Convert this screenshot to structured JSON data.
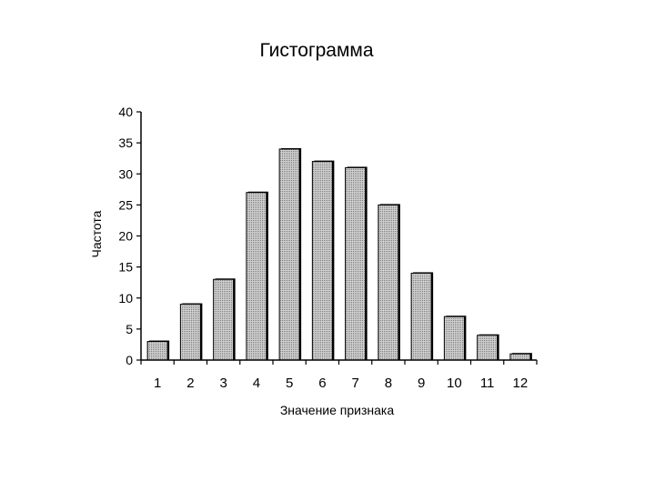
{
  "slide": {
    "title": "Гистограмма"
  },
  "chart_data": {
    "type": "bar",
    "title": "",
    "xlabel": "Значение признака",
    "ylabel": "Частота",
    "categories": [
      "1",
      "2",
      "3",
      "4",
      "5",
      "6",
      "7",
      "8",
      "9",
      "10",
      "11",
      "12"
    ],
    "values": [
      3,
      9,
      13,
      27,
      34,
      32,
      31,
      25,
      14,
      7,
      4,
      1
    ],
    "ylim": [
      0,
      40
    ],
    "yticks": [
      "0",
      "5",
      "10",
      "15",
      "20",
      "25",
      "30",
      "35",
      "40"
    ],
    "grid": false,
    "bar_color": "#a8a8a8",
    "shadow_color": "#000000"
  }
}
